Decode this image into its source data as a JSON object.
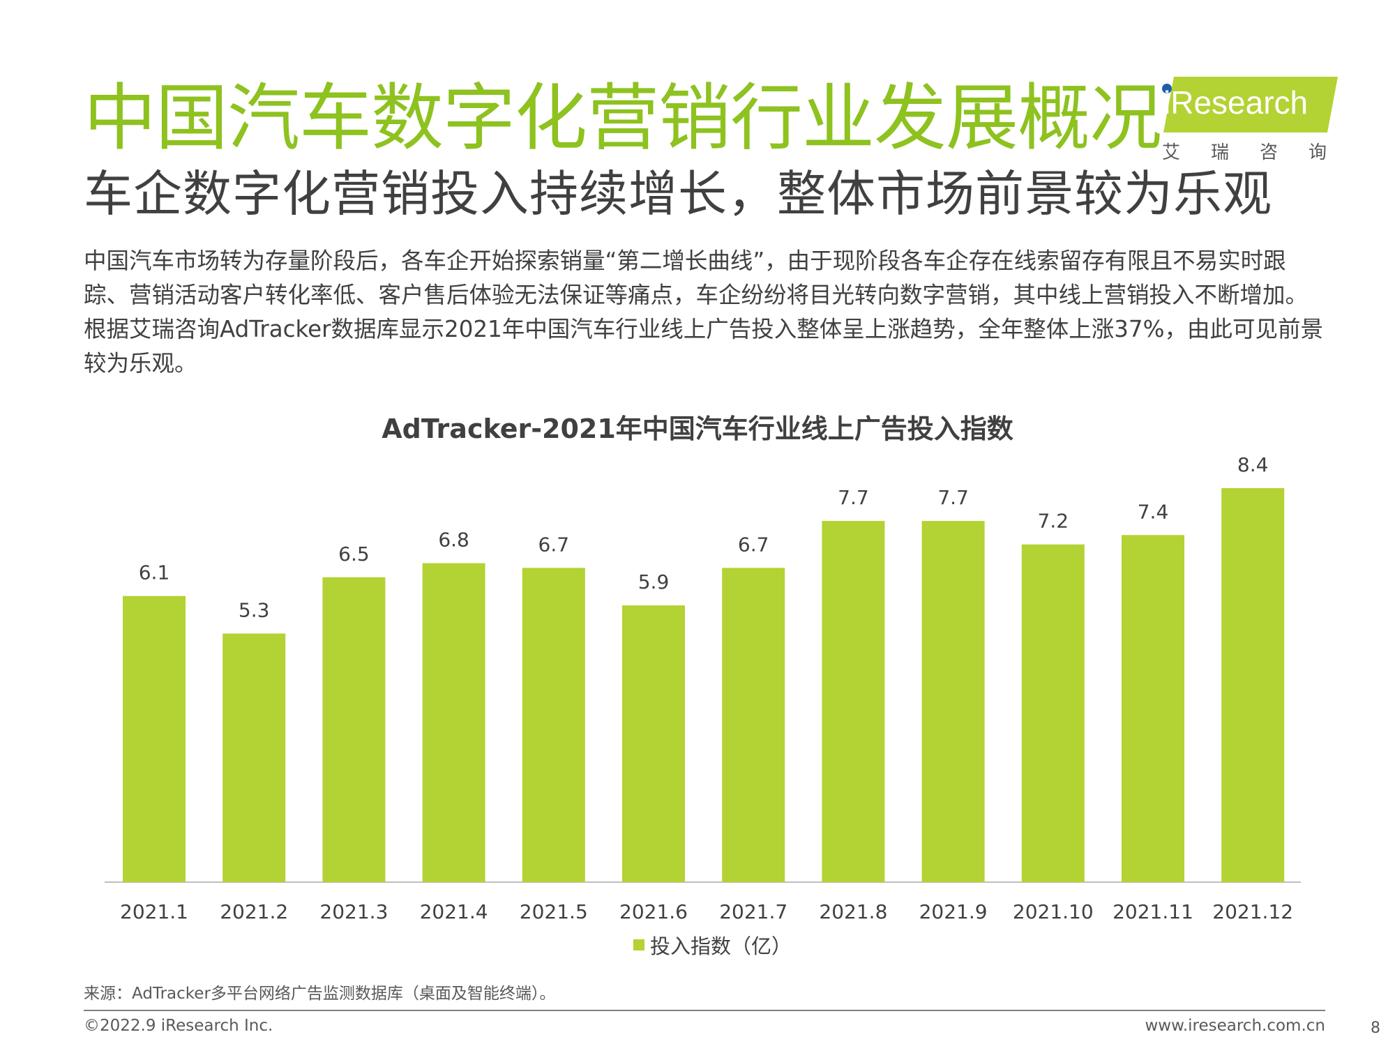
{
  "header": {
    "title": "中国汽车数字化营销行业发展概况",
    "subtitle": "车企数字化营销投入持续增长，整体市场前景较为乐观"
  },
  "logo": {
    "wordmark": "iResearch",
    "cn": "艾瑞咨询",
    "colors": {
      "badge": "#b3d233",
      "dot": "#1f5fa8"
    }
  },
  "body": {
    "paragraph": "中国汽车市场转为存量阶段后，各车企开始探索销量“第二增长曲线”，由于现阶段各车企存在线索留存有限且不易实时跟踪、营销活动客户转化率低、客户售后体验无法保证等痛点，车企纷纷将目光转向数字营销，其中线上营销投入不断增加。根据艾瑞咨询AdTracker数据库显示2021年中国汽车行业线上广告投入整体呈上涨趋势，全年整体上涨37%，由此可见前景较为乐观。"
  },
  "chart_data": {
    "type": "bar",
    "title": "AdTracker-2021年中国汽车行业线上广告投入指数",
    "categories": [
      "2021.1",
      "2021.2",
      "2021.3",
      "2021.4",
      "2021.5",
      "2021.6",
      "2021.7",
      "2021.8",
      "2021.9",
      "2021.10",
      "2021.11",
      "2021.12"
    ],
    "series": [
      {
        "name": "投入指数（亿）",
        "values": [
          6.1,
          5.3,
          6.5,
          6.8,
          6.7,
          5.9,
          6.7,
          7.7,
          7.7,
          7.2,
          7.4,
          8.4
        ],
        "color": "#b3d233"
      }
    ],
    "ylim": [
      0,
      8.4
    ],
    "grid": false,
    "legend": "bottom-center",
    "data_labels": true
  },
  "footer": {
    "source": "来源：AdTracker多平台网络广告监测数据库（桌面及智能终端）。",
    "copyright": "©2022.9 iResearch Inc.",
    "website": "www.iresearch.com.cn",
    "page": "8"
  }
}
